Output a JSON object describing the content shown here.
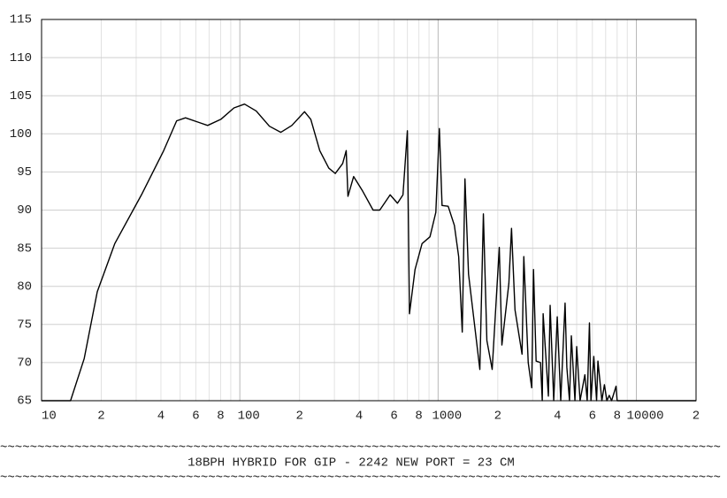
{
  "chart_data": {
    "type": "line",
    "log_x": true,
    "grid": true,
    "color": "#000000",
    "title": "18BPH HYBRID FOR GIP - 2242 NEW PORT = 23 CM",
    "separator": "~~~~~~~~~~~~~~~~~~~~~~~~~~~~~~~~~~~~~~~~~~~~~~~~~~~~~~~~~~~~~~~~~~~~~~~~~~~~~~~~~~~~~~~~~~~~~~~~~",
    "xlim": [
      10,
      20000
    ],
    "ylim": [
      65,
      115
    ],
    "yticks": [
      65,
      70,
      75,
      80,
      85,
      90,
      95,
      100,
      105,
      110,
      115
    ],
    "xticks": [
      10,
      {
        "value": 20,
        "label": "2"
      },
      {
        "value": 40,
        "label": "4"
      },
      {
        "value": 60,
        "label": "6"
      },
      {
        "value": 80,
        "label": "8"
      },
      100,
      {
        "value": 200,
        "label": "2"
      },
      {
        "value": 400,
        "label": "4"
      },
      {
        "value": 600,
        "label": "6"
      },
      {
        "value": 800,
        "label": "8"
      },
      1000,
      {
        "value": 2000,
        "label": "2"
      },
      {
        "value": 4000,
        "label": "4"
      },
      {
        "value": 6000,
        "label": "6"
      },
      {
        "value": 8000,
        "label": "8"
      },
      10000,
      {
        "value": 20000,
        "label": "2"
      }
    ],
    "xminor_ticks": [
      30,
      50,
      70,
      90,
      300,
      500,
      700,
      900,
      3000,
      5000,
      7000,
      9000
    ],
    "x": [
      10,
      14,
      16.4,
      19.1,
      23.4,
      31.9,
      41.3,
      48,
      53.2,
      62.1,
      68.8,
      80.2,
      93.4,
      105.6,
      120.9,
      141,
      161,
      183,
      212,
      228,
      253,
      281,
      303,
      330,
      344,
      351,
      375,
      414,
      470,
      508,
      573,
      624,
      665,
      700,
      717,
      765,
      830,
      910,
      974,
      1015,
      1047,
      1124,
      1208,
      1270,
      1324,
      1366,
      1424,
      1624,
      1692,
      1762,
      1874,
      2035,
      2098,
      2275,
      2346,
      2443,
      2651,
      2706,
      2848,
      2966,
      3028,
      3122,
      3285,
      3353,
      3387,
      3600,
      3674,
      3830,
      3990,
      4155,
      4370,
      4460,
      4600,
      4700,
      4900,
      5000,
      5200,
      5500,
      5650,
      5800,
      5900,
      6100,
      6300,
      6400,
      6700,
      6900,
      7100,
      7300,
      7500,
      7900,
      8000,
      20000
    ],
    "values": [
      65,
      65,
      70.5,
      79.3,
      85.6,
      92,
      97.8,
      101.7,
      102.1,
      101.5,
      101.1,
      101.9,
      103.4,
      103.9,
      103,
      101,
      100.2,
      101.1,
      102.9,
      101.9,
      97.8,
      95.5,
      94.8,
      96.1,
      97.8,
      91.8,
      94.4,
      92.6,
      90,
      90,
      92,
      90.9,
      92,
      100.4,
      76.4,
      82.2,
      85.6,
      86.5,
      89.7,
      100.7,
      90.6,
      90.5,
      88,
      83.9,
      74,
      94.1,
      81.6,
      69.1,
      89.5,
      72.9,
      69.1,
      85.1,
      72.3,
      80.4,
      87.6,
      76.9,
      71.1,
      83.9,
      70,
      66.7,
      82.2,
      70.2,
      70,
      65,
      76.4,
      65.6,
      77.5,
      65,
      76,
      65,
      77.8,
      69.4,
      65,
      73.5,
      65,
      72.1,
      65,
      68.4,
      65,
      75.2,
      65,
      70.8,
      65,
      70.2,
      65,
      67.1,
      65,
      65.7,
      65,
      66.9,
      65,
      65
    ]
  }
}
